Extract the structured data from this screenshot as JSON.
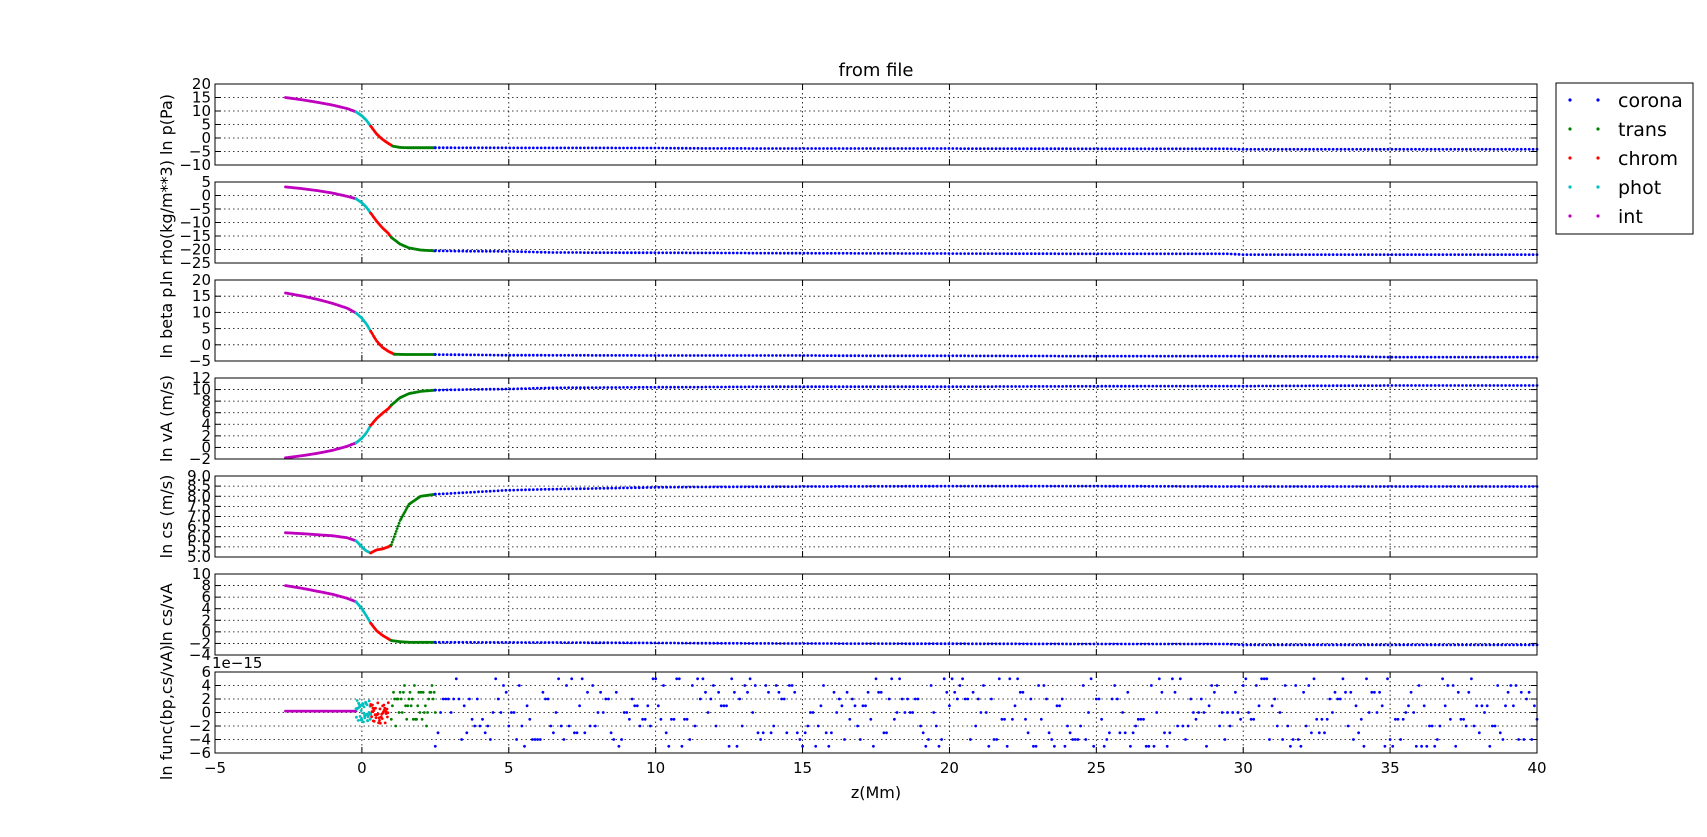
{
  "figure": {
    "title": "from file",
    "xlabel": "z(Mm)",
    "xlim": [
      -5,
      40
    ],
    "xticks": [
      "−5",
      "0",
      "5",
      "10",
      "15",
      "20",
      "25",
      "30",
      "35",
      "40"
    ],
    "xtick_values": [
      -5,
      0,
      5,
      10,
      15,
      20,
      25,
      30,
      35,
      40
    ],
    "offset_text": "1e−15"
  },
  "legend": {
    "placement": "outside-right-top",
    "entries": [
      {
        "label": "corona",
        "color": "#0000ff"
      },
      {
        "label": "trans",
        "color": "#008000"
      },
      {
        "label": "chrom",
        "color": "#ff0000"
      },
      {
        "label": "phot",
        "color": "#00bfbf"
      },
      {
        "label": "int",
        "color": "#bf00bf"
      }
    ]
  },
  "chart_data": [
    {
      "type": "scatter",
      "ylabel": "ln p(Pa)",
      "ylim": [
        -10,
        20
      ],
      "yticks": [
        "20",
        "15",
        "10",
        "5",
        "0",
        "−5",
        "−10"
      ],
      "ytick_values": [
        20,
        15,
        10,
        5,
        0,
        -5,
        -10
      ],
      "grid": true,
      "series": [
        {
          "name": "int",
          "x": [
            -2.6,
            -2.0,
            -1.5,
            -1.0,
            -0.5,
            -0.2
          ],
          "y": [
            15.0,
            14.1,
            13.2,
            12.2,
            10.9,
            9.7
          ]
        },
        {
          "name": "phot",
          "x": [
            -0.2,
            0.0,
            0.15,
            0.3
          ],
          "y": [
            9.7,
            8.2,
            6.6,
            4.4
          ]
        },
        {
          "name": "chrom",
          "x": [
            0.3,
            0.5,
            0.7,
            0.9,
            1.05
          ],
          "y": [
            4.4,
            1.5,
            -0.5,
            -2.0,
            -3.0
          ]
        },
        {
          "name": "trans",
          "x": [
            1.05,
            1.3,
            1.6,
            2.0,
            2.5
          ],
          "y": [
            -3.0,
            -3.5,
            -3.6,
            -3.6,
            -3.6
          ]
        },
        {
          "name": "corona",
          "x": [
            2.5,
            5,
            10,
            11.7,
            15,
            20,
            25,
            29.5,
            30,
            35,
            40
          ],
          "y": [
            -3.6,
            -3.65,
            -3.7,
            -3.85,
            -3.9,
            -3.9,
            -4.0,
            -4.0,
            -4.2,
            -4.2,
            -4.2
          ]
        }
      ]
    },
    {
      "type": "scatter",
      "ylabel": "ln rho(kg/m**3)",
      "ylim": [
        -25,
        5
      ],
      "yticks": [
        "5",
        "0",
        "−5",
        "−10",
        "−15",
        "−20",
        "−25"
      ],
      "ytick_values": [
        5,
        0,
        -5,
        -10,
        -15,
        -20,
        -25
      ],
      "grid": true,
      "series": [
        {
          "name": "int",
          "x": [
            -2.6,
            -2.0,
            -1.5,
            -1.0,
            -0.5,
            -0.2
          ],
          "y": [
            3.2,
            2.5,
            1.8,
            0.9,
            -0.3,
            -1.2
          ]
        },
        {
          "name": "phot",
          "x": [
            -0.2,
            0.0,
            0.15,
            0.3
          ],
          "y": [
            -1.2,
            -2.7,
            -4.3,
            -6.5
          ]
        },
        {
          "name": "chrom",
          "x": [
            0.3,
            0.5,
            0.7,
            0.9,
            1.0
          ],
          "y": [
            -6.5,
            -9.5,
            -12.0,
            -14.0,
            -15.5
          ]
        },
        {
          "name": "trans",
          "x": [
            1.0,
            1.3,
            1.6,
            2.0,
            2.5
          ],
          "y": [
            -15.5,
            -18.0,
            -19.4,
            -20.2,
            -20.5
          ]
        },
        {
          "name": "corona",
          "x": [
            2.5,
            3.3,
            5,
            6.5,
            10,
            15.5,
            20,
            25,
            29.5,
            30,
            35,
            40
          ],
          "y": [
            -20.5,
            -20.6,
            -20.7,
            -21.1,
            -21.2,
            -21.4,
            -21.5,
            -21.6,
            -21.6,
            -21.9,
            -21.9,
            -21.9
          ]
        }
      ]
    },
    {
      "type": "scatter",
      "ylabel": "ln beta p.",
      "ylim": [
        -5,
        20
      ],
      "yticks": [
        "20",
        "15",
        "10",
        "5",
        "0",
        "−5"
      ],
      "ytick_values": [
        20,
        15,
        10,
        5,
        0,
        -5
      ],
      "grid": true,
      "series": [
        {
          "name": "int",
          "x": [
            -2.6,
            -2.0,
            -1.5,
            -1.0,
            -0.5,
            -0.2
          ],
          "y": [
            16.0,
            15.0,
            14.0,
            12.8,
            11.3,
            9.8
          ]
        },
        {
          "name": "phot",
          "x": [
            -0.2,
            0.0,
            0.15,
            0.3
          ],
          "y": [
            9.8,
            8.2,
            6.5,
            4.2
          ]
        },
        {
          "name": "chrom",
          "x": [
            0.3,
            0.5,
            0.7,
            0.9,
            1.1
          ],
          "y": [
            4.2,
            1.2,
            -0.8,
            -2.0,
            -2.9
          ]
        },
        {
          "name": "trans",
          "x": [
            1.1,
            1.5,
            2.0,
            2.5
          ],
          "y": [
            -2.9,
            -3.0,
            -3.0,
            -3.0
          ]
        },
        {
          "name": "corona",
          "x": [
            2.5,
            4.8,
            10,
            15,
            17.5,
            20,
            25,
            30,
            33.5,
            35,
            40
          ],
          "y": [
            -3.0,
            -3.2,
            -3.3,
            -3.3,
            -3.4,
            -3.4,
            -3.5,
            -3.5,
            -3.6,
            -3.8,
            -3.8
          ]
        }
      ]
    },
    {
      "type": "scatter",
      "ylabel": "ln vA (m/s)",
      "ylim": [
        -2,
        12
      ],
      "yticks": [
        "12",
        "10",
        "8",
        "6",
        "4",
        "2",
        "0",
        "−2"
      ],
      "ytick_values": [
        12,
        10,
        8,
        6,
        4,
        2,
        0,
        -2
      ],
      "grid": true,
      "series": [
        {
          "name": "int",
          "x": [
            -2.6,
            -2.0,
            -1.5,
            -1.0,
            -0.5,
            -0.2
          ],
          "y": [
            -1.8,
            -1.4,
            -1.0,
            -0.5,
            0.2,
            0.8
          ]
        },
        {
          "name": "phot",
          "x": [
            -0.2,
            0.0,
            0.15,
            0.3
          ],
          "y": [
            0.8,
            1.6,
            2.5,
            3.8
          ]
        },
        {
          "name": "chrom",
          "x": [
            0.3,
            0.5,
            0.7,
            0.9,
            1.0
          ],
          "y": [
            3.8,
            5.0,
            5.9,
            6.7,
            7.3
          ]
        },
        {
          "name": "trans",
          "x": [
            1.0,
            1.3,
            1.6,
            2.0,
            2.5
          ],
          "y": [
            7.3,
            8.6,
            9.3,
            9.7,
            9.9
          ]
        },
        {
          "name": "corona",
          "x": [
            2.5,
            3.5,
            5,
            6.5,
            10,
            14.5,
            20,
            27,
            30,
            35,
            40
          ],
          "y": [
            9.9,
            10.0,
            10.1,
            10.3,
            10.4,
            10.5,
            10.5,
            10.6,
            10.6,
            10.7,
            10.7
          ]
        }
      ]
    },
    {
      "type": "scatter",
      "ylabel": "ln cs (m/s)",
      "ylim": [
        5.0,
        9.0
      ],
      "yticks": [
        "9.0",
        "8.5",
        "8.0",
        "7.5",
        "7.0",
        "6.5",
        "6.0",
        "5.5",
        "5.0"
      ],
      "ytick_values": [
        9.0,
        8.5,
        8.0,
        7.5,
        7.0,
        6.5,
        6.0,
        5.5,
        5.0
      ],
      "grid": true,
      "series": [
        {
          "name": "int",
          "x": [
            -2.6,
            -2.0,
            -1.5,
            -1.0,
            -0.5,
            -0.2
          ],
          "y": [
            6.2,
            6.15,
            6.1,
            6.05,
            5.95,
            5.8
          ]
        },
        {
          "name": "phot",
          "x": [
            -0.2,
            0.0,
            0.15,
            0.3
          ],
          "y": [
            5.8,
            5.5,
            5.3,
            5.2
          ]
        },
        {
          "name": "chrom",
          "x": [
            0.3,
            0.5,
            0.7,
            0.9,
            1.0
          ],
          "y": [
            5.2,
            5.35,
            5.4,
            5.5,
            5.6
          ]
        },
        {
          "name": "trans",
          "x": [
            1.0,
            1.3,
            1.6,
            2.0,
            2.5
          ],
          "y": [
            5.6,
            6.8,
            7.6,
            8.0,
            8.1
          ]
        },
        {
          "name": "corona",
          "x": [
            2.5,
            5,
            6.5,
            10.5,
            15,
            20,
            25,
            30,
            35,
            40
          ],
          "y": [
            8.1,
            8.3,
            8.35,
            8.45,
            8.48,
            8.5,
            8.5,
            8.48,
            8.48,
            8.48
          ]
        }
      ]
    },
    {
      "type": "scatter",
      "ylabel": "ln cs/vA",
      "ylim": [
        -4,
        10
      ],
      "yticks": [
        "10",
        "8",
        "6",
        "4",
        "2",
        "0",
        "−2",
        "−4"
      ],
      "ytick_values": [
        10,
        8,
        6,
        4,
        2,
        0,
        -2,
        -4
      ],
      "grid": true,
      "series": [
        {
          "name": "int",
          "x": [
            -2.6,
            -2.0,
            -1.5,
            -1.0,
            -0.5,
            -0.2
          ],
          "y": [
            8.0,
            7.5,
            7.0,
            6.5,
            5.8,
            5.2
          ]
        },
        {
          "name": "phot",
          "x": [
            -0.2,
            0.0,
            0.15,
            0.3
          ],
          "y": [
            5.2,
            4.0,
            2.8,
            1.5
          ]
        },
        {
          "name": "chrom",
          "x": [
            0.3,
            0.5,
            0.7,
            0.9,
            1.0
          ],
          "y": [
            1.5,
            0.2,
            -0.6,
            -1.2,
            -1.5
          ]
        },
        {
          "name": "trans",
          "x": [
            1.0,
            1.3,
            1.6,
            2.0,
            2.5
          ],
          "y": [
            -1.5,
            -1.7,
            -1.8,
            -1.8,
            -1.8
          ]
        },
        {
          "name": "corona",
          "x": [
            2.5,
            7,
            13.5,
            20,
            25,
            29.5,
            30,
            35,
            40
          ],
          "y": [
            -1.8,
            -1.85,
            -2.0,
            -2.05,
            -2.1,
            -2.1,
            -2.25,
            -2.25,
            -2.25
          ]
        }
      ]
    },
    {
      "type": "scatter",
      "ylabel": "ln func(bp,cs/vA)",
      "ylim": [
        -6,
        6
      ],
      "yticks": [
        "6",
        "4",
        "2",
        "0",
        "−2",
        "−4",
        "−6"
      ],
      "ytick_values": [
        6,
        4,
        2,
        0,
        -2,
        -4,
        -6
      ],
      "y_scale_offset": "1e−15",
      "grid": true,
      "noise": true,
      "series": [
        {
          "name": "int",
          "x": [
            -2.6,
            -2.0,
            -1.5,
            -1.0,
            -0.5,
            -0.2
          ],
          "y": [
            0.2,
            0.2,
            0.2,
            0.2,
            0.2,
            0.2
          ]
        },
        {
          "name": "phot",
          "x": [
            -0.2,
            0.0,
            0.15,
            0.3
          ],
          "y": [
            0.2,
            0.2,
            0.2,
            0.2
          ]
        },
        {
          "name": "chrom",
          "x": [
            0.3,
            0.6,
            0.9
          ],
          "y": [
            0.0,
            0.0,
            0.0
          ]
        },
        {
          "name": "trans",
          "x": [
            1.0,
            1.8,
            2.5
          ],
          "y": [
            0.5,
            0.5,
            0.5
          ]
        },
        {
          "name": "corona",
          "x": [
            2.5,
            10,
            20,
            30,
            40
          ],
          "y": [
            0.0,
            0.0,
            0.0,
            0.0,
            0.0
          ]
        }
      ]
    }
  ]
}
